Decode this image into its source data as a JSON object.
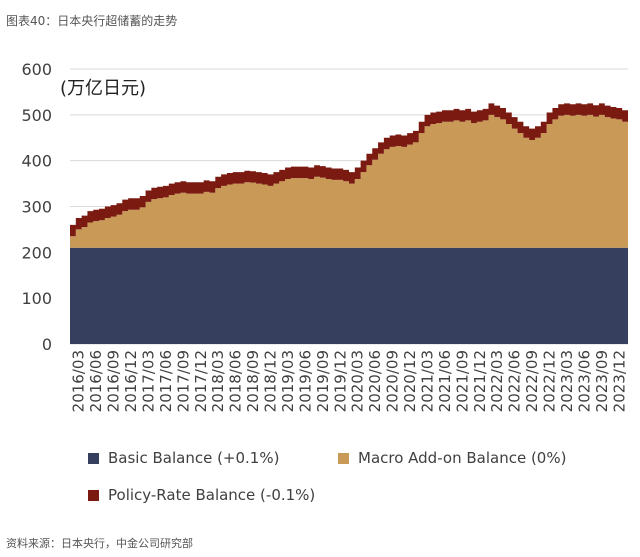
{
  "caption": "图表40：日本央行超储蓄的走势",
  "source": "资料来源：日本央行，中金公司研究部",
  "colors": {
    "basic": "#373f5f",
    "macro": "#c99a57",
    "policy": "#7a1a10"
  },
  "chart_data": {
    "type": "area",
    "stacked": true,
    "unit_label": "(万亿日元)",
    "ylim": [
      0,
      600
    ],
    "yticks": [
      0,
      100,
      200,
      300,
      400,
      500,
      600
    ],
    "xtick_labels": [
      "2016/03",
      "2016/06",
      "2016/09",
      "2016/12",
      "2017/03",
      "2017/06",
      "2017/09",
      "2017/12",
      "2018/03",
      "2018/06",
      "2018/09",
      "2018/12",
      "2019/03",
      "2019/06",
      "2019/09",
      "2019/12",
      "2020/03",
      "2020/06",
      "2020/09",
      "2020/12",
      "2021/03",
      "2021/06",
      "2021/09",
      "2021/12",
      "2022/03",
      "2022/06",
      "2022/09",
      "2022/12",
      "2023/03",
      "2023/06",
      "2023/09",
      "2023/12"
    ],
    "x": [
      "2016/02",
      "2016/03",
      "2016/04",
      "2016/05",
      "2016/06",
      "2016/07",
      "2016/08",
      "2016/09",
      "2016/10",
      "2016/11",
      "2016/12",
      "2017/01",
      "2017/02",
      "2017/03",
      "2017/04",
      "2017/05",
      "2017/06",
      "2017/07",
      "2017/08",
      "2017/09",
      "2017/10",
      "2017/11",
      "2017/12",
      "2018/01",
      "2018/02",
      "2018/03",
      "2018/04",
      "2018/05",
      "2018/06",
      "2018/07",
      "2018/08",
      "2018/09",
      "2018/10",
      "2018/11",
      "2018/12",
      "2019/01",
      "2019/02",
      "2019/03",
      "2019/04",
      "2019/05",
      "2019/06",
      "2019/07",
      "2019/08",
      "2019/09",
      "2019/10",
      "2019/11",
      "2019/12",
      "2020/01",
      "2020/02",
      "2020/03",
      "2020/04",
      "2020/05",
      "2020/06",
      "2020/07",
      "2020/08",
      "2020/09",
      "2020/10",
      "2020/11",
      "2020/12",
      "2021/01",
      "2021/02",
      "2021/03",
      "2021/04",
      "2021/05",
      "2021/06",
      "2021/07",
      "2021/08",
      "2021/09",
      "2021/10",
      "2021/11",
      "2021/12",
      "2022/01",
      "2022/02",
      "2022/03",
      "2022/04",
      "2022/05",
      "2022/06",
      "2022/07",
      "2022/08",
      "2022/09",
      "2022/10",
      "2022/11",
      "2022/12",
      "2023/01",
      "2023/02",
      "2023/03",
      "2023/04",
      "2023/05",
      "2023/06",
      "2023/07",
      "2023/08",
      "2023/09",
      "2023/10",
      "2023/11",
      "2023/12",
      "2024/01"
    ],
    "series": [
      {
        "name": "Basic Balance (+0.1%)",
        "key": "basic",
        "values": [
          210,
          210,
          210,
          210,
          210,
          210,
          210,
          210,
          210,
          210,
          210,
          210,
          210,
          210,
          210,
          210,
          210,
          210,
          210,
          210,
          210,
          210,
          210,
          210,
          210,
          210,
          210,
          210,
          210,
          210,
          210,
          210,
          210,
          210,
          210,
          210,
          210,
          210,
          210,
          210,
          210,
          210,
          210,
          210,
          210,
          210,
          210,
          210,
          210,
          210,
          210,
          210,
          210,
          210,
          210,
          210,
          210,
          210,
          210,
          210,
          210,
          210,
          210,
          210,
          210,
          210,
          210,
          210,
          210,
          210,
          210,
          210,
          210,
          210,
          210,
          210,
          210,
          210,
          210,
          210,
          210,
          210,
          210,
          210,
          210,
          210,
          210,
          210,
          210,
          210,
          210,
          210,
          210,
          210,
          210,
          210
        ]
      },
      {
        "name": "Macro Add-on Balance (0%)",
        "key": "macro",
        "values": [
          25,
          40,
          45,
          55,
          58,
          60,
          65,
          68,
          72,
          80,
          83,
          83,
          88,
          100,
          106,
          108,
          110,
          115,
          118,
          120,
          118,
          118,
          118,
          122,
          120,
          130,
          135,
          138,
          140,
          140,
          143,
          142,
          140,
          138,
          135,
          140,
          145,
          150,
          152,
          152,
          152,
          150,
          155,
          153,
          150,
          148,
          148,
          145,
          140,
          150,
          165,
          180,
          192,
          205,
          215,
          220,
          222,
          220,
          225,
          230,
          250,
          265,
          270,
          272,
          275,
          275,
          278,
          275,
          278,
          272,
          275,
          278,
          290,
          285,
          280,
          270,
          260,
          250,
          240,
          235,
          240,
          250,
          270,
          280,
          288,
          290,
          288,
          290,
          288,
          290,
          286,
          290,
          285,
          282,
          280,
          275
        ]
      },
      {
        "name": "Policy-Rate Balance (-0.1%)",
        "key": "policy",
        "values": [
          25,
          25,
          25,
          25,
          25,
          25,
          25,
          25,
          25,
          25,
          25,
          25,
          25,
          25,
          25,
          25,
          25,
          25,
          25,
          25,
          25,
          25,
          25,
          25,
          25,
          25,
          25,
          25,
          25,
          25,
          25,
          25,
          25,
          25,
          25,
          25,
          25,
          25,
          25,
          25,
          25,
          25,
          25,
          25,
          25,
          25,
          25,
          25,
          25,
          25,
          25,
          25,
          25,
          25,
          25,
          25,
          25,
          25,
          25,
          25,
          25,
          25,
          25,
          25,
          25,
          25,
          25,
          25,
          25,
          25,
          25,
          25,
          25,
          25,
          25,
          25,
          25,
          25,
          25,
          25,
          25,
          25,
          25,
          25,
          25,
          25,
          25,
          25,
          25,
          25,
          25,
          25,
          25,
          25,
          25,
          25
        ]
      }
    ],
    "grid": "horizontal",
    "legend_position": "bottom"
  }
}
